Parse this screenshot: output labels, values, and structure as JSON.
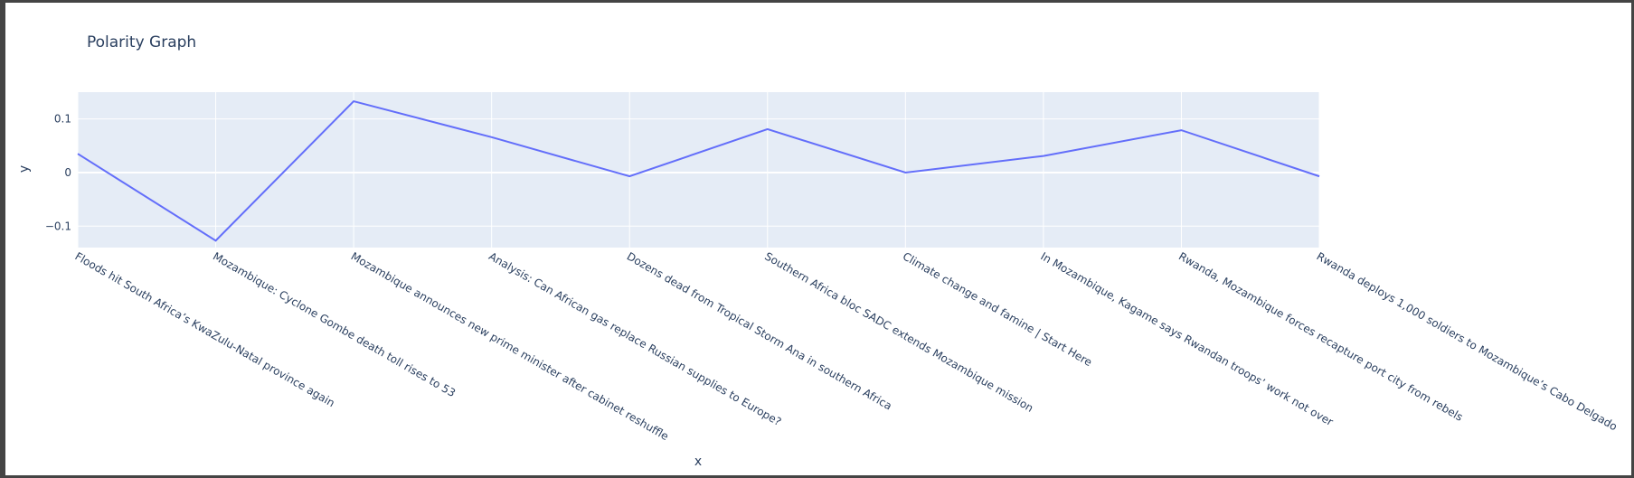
{
  "chart_data": {
    "type": "line",
    "title": "Polarity Graph",
    "xlabel": "x",
    "ylabel": "y",
    "ylim": [
      -0.14,
      0.15
    ],
    "yticks": [
      -0.1,
      0,
      0.1
    ],
    "ytick_labels": [
      "−0.1",
      "0",
      "0.1"
    ],
    "grid": true,
    "line_color": "#636efa",
    "plot_bg": "#e5ecf6",
    "categories": [
      "Floods hit South Africa’s KwaZulu-Natal province again",
      "Mozambique: Cyclone Gombe death toll rises to 53",
      "Mozambique announces new prime minister after cabinet reshuffle",
      "Analysis: Can African gas replace Russian supplies to Europe?",
      "Dozens dead from Tropical Storm Ana in southern Africa",
      "Southern Africa bloc SADC extends Mozambique mission",
      "Climate change and famine | Start Here",
      "In Mozambique, Kagame says Rwandan troops’ work not over",
      "Rwanda, Mozambique forces recapture port city from rebels",
      "Rwanda deploys 1,000 soldiers to Mozambique’s Cabo Delgado"
    ],
    "values": [
      0.035,
      -0.127,
      0.133,
      0.066,
      -0.007,
      0.081,
      0.0,
      0.031,
      0.079,
      -0.007
    ]
  }
}
